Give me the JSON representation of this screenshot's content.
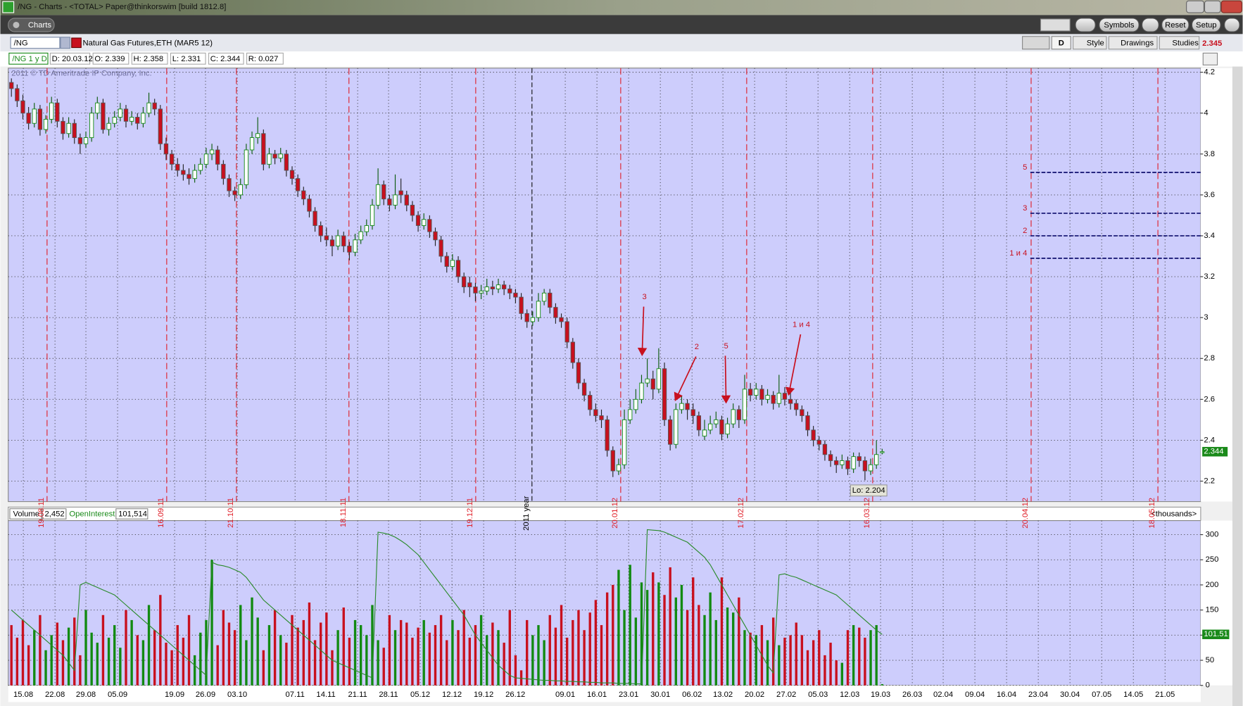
{
  "window": {
    "title": "/NG - Charts - <TOTAL> Paper@thinkorswim [build 1812.8]",
    "tab": "Charts",
    "buttons": [
      "Symbols",
      "Reset",
      "Setup"
    ]
  },
  "symbol_bar": {
    "symbol": "/NG",
    "description": "Natural Gas Futures,ETH (MAR5 12)",
    "aggregation": "D",
    "buttons": [
      "Style",
      "Drawings",
      "Studies"
    ],
    "last": "2.345"
  },
  "info_bar": {
    "label": "/NG 1 y D",
    "items": [
      "D: 20.03.12",
      "O: 2.339",
      "H: 2.358",
      "L: 2.331",
      "C: 2.344",
      "R: 0.027"
    ]
  },
  "x_axis": {
    "labels": [
      "15.08",
      "22.08",
      "29.08",
      "05.09",
      "19.09",
      "26.09",
      "03.10",
      "07.11",
      "14.11",
      "21.11",
      "28.11",
      "05.12",
      "12.12",
      "19.12",
      "26.12",
      "09.01",
      "16.01",
      "23.01",
      "30.01",
      "06.02",
      "13.02",
      "20.02",
      "27.02",
      "05.03",
      "12.03",
      "19.03",
      "26.03",
      "02.04",
      "09.04",
      "16.04",
      "23.04",
      "30.04",
      "07.05",
      "14.05",
      "21.05"
    ]
  },
  "chart_data": [
    {
      "type": "candlestick",
      "watermark": "2011 © TD Ameritrade IP Company, Inc.",
      "ylim": [
        2.1,
        4.22
      ],
      "yticks": [
        2.2,
        2.4,
        2.6,
        2.8,
        3,
        3.2,
        3.4,
        3.6,
        3.8,
        4,
        4.2
      ],
      "grid": true,
      "up_color": "#128a12",
      "down_color": "#c8101e",
      "current_value": 2.344,
      "low_label": "Lo: 2.204",
      "expiry_lines": [
        "19.08.11",
        "16.09.11",
        "21.10.11",
        "18.11.11",
        "19.12.11",
        "20.01.12",
        "17.02.12",
        "16.03.12",
        "20.04.12",
        "18.05.12"
      ],
      "year_line": "2011 year",
      "arrows": [
        "3",
        "2",
        "5",
        "1 и 4"
      ],
      "levels": [
        {
          "label": "5",
          "value": 3.71
        },
        {
          "label": "3",
          "value": 3.51
        },
        {
          "label": "2",
          "value": 3.4
        },
        {
          "label": "1 и 4",
          "value": 3.29
        }
      ],
      "ohlc": [
        [
          4.15,
          4.17,
          4.08,
          4.12
        ],
        [
          4.12,
          4.14,
          4.03,
          4.06
        ],
        [
          4.06,
          4.09,
          3.97,
          4.0
        ],
        [
          4.0,
          4.03,
          3.92,
          3.95
        ],
        [
          3.95,
          4.05,
          3.93,
          4.02
        ],
        [
          4.02,
          4.04,
          3.89,
          3.92
        ],
        [
          3.92,
          3.99,
          3.9,
          3.97
        ],
        [
          3.97,
          4.08,
          3.95,
          4.05
        ],
        [
          4.05,
          4.07,
          3.93,
          3.96
        ],
        [
          3.96,
          3.98,
          3.87,
          3.9
        ],
        [
          3.9,
          3.98,
          3.88,
          3.95
        ],
        [
          3.95,
          3.97,
          3.85,
          3.88
        ],
        [
          3.88,
          3.9,
          3.8,
          3.85
        ],
        [
          3.85,
          3.91,
          3.83,
          3.88
        ],
        [
          3.88,
          4.03,
          3.86,
          4.0
        ],
        [
          4.0,
          4.08,
          3.97,
          4.05
        ],
        [
          4.05,
          4.07,
          3.9,
          3.92
        ],
        [
          3.92,
          3.98,
          3.89,
          3.95
        ],
        [
          3.95,
          4.01,
          3.93,
          3.98
        ],
        [
          3.98,
          4.05,
          3.96,
          4.02
        ],
        [
          4.02,
          4.04,
          3.93,
          3.96
        ],
        [
          3.96,
          4.01,
          3.94,
          3.98
        ],
        [
          3.98,
          4.0,
          3.92,
          3.95
        ],
        [
          3.95,
          4.03,
          3.93,
          4.0
        ],
        [
          4.0,
          4.1,
          3.98,
          4.05
        ],
        [
          4.05,
          4.07,
          3.99,
          4.02
        ],
        [
          4.02,
          4.04,
          3.82,
          3.85
        ],
        [
          3.85,
          3.88,
          3.77,
          3.8
        ],
        [
          3.8,
          3.82,
          3.72,
          3.75
        ],
        [
          3.75,
          3.78,
          3.69,
          3.72
        ],
        [
          3.72,
          3.75,
          3.67,
          3.7
        ],
        [
          3.7,
          3.73,
          3.65,
          3.68
        ],
        [
          3.68,
          3.75,
          3.66,
          3.72
        ],
        [
          3.72,
          3.78,
          3.7,
          3.75
        ],
        [
          3.75,
          3.83,
          3.73,
          3.8
        ],
        [
          3.8,
          3.85,
          3.77,
          3.82
        ],
        [
          3.82,
          3.84,
          3.72,
          3.75
        ],
        [
          3.75,
          3.77,
          3.65,
          3.68
        ],
        [
          3.68,
          3.7,
          3.59,
          3.62
        ],
        [
          3.62,
          3.64,
          3.57,
          3.6
        ],
        [
          3.6,
          3.68,
          3.58,
          3.65
        ],
        [
          3.65,
          3.85,
          3.63,
          3.82
        ],
        [
          3.82,
          3.91,
          3.8,
          3.88
        ],
        [
          3.88,
          3.98,
          3.85,
          3.9
        ],
        [
          3.9,
          3.92,
          3.72,
          3.75
        ],
        [
          3.75,
          3.83,
          3.73,
          3.8
        ],
        [
          3.8,
          3.82,
          3.75,
          3.78
        ],
        [
          3.78,
          3.83,
          3.76,
          3.8
        ],
        [
          3.8,
          3.82,
          3.69,
          3.72
        ],
        [
          3.72,
          3.74,
          3.65,
          3.68
        ],
        [
          3.68,
          3.7,
          3.59,
          3.62
        ],
        [
          3.62,
          3.64,
          3.55,
          3.58
        ],
        [
          3.58,
          3.6,
          3.49,
          3.52
        ],
        [
          3.52,
          3.54,
          3.42,
          3.45
        ],
        [
          3.45,
          3.47,
          3.37,
          3.4
        ],
        [
          3.4,
          3.44,
          3.35,
          3.38
        ],
        [
          3.38,
          3.4,
          3.3,
          3.35
        ],
        [
          3.35,
          3.43,
          3.33,
          3.4
        ],
        [
          3.4,
          3.42,
          3.32,
          3.35
        ],
        [
          3.35,
          3.37,
          3.28,
          3.32
        ],
        [
          3.32,
          3.41,
          3.3,
          3.38
        ],
        [
          3.38,
          3.45,
          3.36,
          3.42
        ],
        [
          3.42,
          3.48,
          3.4,
          3.45
        ],
        [
          3.45,
          3.58,
          3.43,
          3.55
        ],
        [
          3.55,
          3.73,
          3.53,
          3.65
        ],
        [
          3.65,
          3.67,
          3.55,
          3.58
        ],
        [
          3.58,
          3.6,
          3.52,
          3.55
        ],
        [
          3.55,
          3.7,
          3.53,
          3.6
        ],
        [
          3.62,
          3.68,
          3.56,
          3.6
        ],
        [
          3.6,
          3.62,
          3.52,
          3.55
        ],
        [
          3.55,
          3.57,
          3.47,
          3.5
        ],
        [
          3.5,
          3.52,
          3.42,
          3.45
        ],
        [
          3.45,
          3.51,
          3.43,
          3.48
        ],
        [
          3.48,
          3.5,
          3.39,
          3.42
        ],
        [
          3.42,
          3.44,
          3.35,
          3.38
        ],
        [
          3.38,
          3.4,
          3.27,
          3.3
        ],
        [
          3.3,
          3.32,
          3.22,
          3.25
        ],
        [
          3.25,
          3.31,
          3.23,
          3.28
        ],
        [
          3.28,
          3.3,
          3.17,
          3.2
        ],
        [
          3.2,
          3.22,
          3.12,
          3.15
        ],
        [
          3.17,
          3.2,
          3.1,
          3.15
        ],
        [
          3.15,
          3.17,
          3.08,
          3.12
        ],
        [
          3.12,
          3.16,
          3.09,
          3.13
        ],
        [
          3.13,
          3.19,
          3.11,
          3.15
        ],
        [
          3.15,
          3.18,
          3.11,
          3.14
        ],
        [
          3.14,
          3.19,
          3.12,
          3.16
        ],
        [
          3.16,
          3.18,
          3.11,
          3.14
        ],
        [
          3.14,
          3.16,
          3.09,
          3.12
        ],
        [
          3.12,
          3.14,
          3.07,
          3.1
        ],
        [
          3.1,
          3.12,
          2.99,
          3.02
        ],
        [
          3.02,
          3.04,
          2.95,
          2.98
        ],
        [
          2.98,
          3.03,
          2.96,
          3.0
        ],
        [
          3.0,
          3.12,
          2.98,
          3.08
        ],
        [
          3.08,
          3.14,
          3.06,
          3.12
        ],
        [
          3.12,
          3.14,
          3.02,
          3.05
        ],
        [
          3.05,
          3.07,
          2.97,
          3.0
        ],
        [
          3.0,
          3.02,
          2.95,
          2.98
        ],
        [
          2.98,
          3.0,
          2.85,
          2.88
        ],
        [
          2.88,
          2.9,
          2.75,
          2.78
        ],
        [
          2.78,
          2.8,
          2.65,
          2.68
        ],
        [
          2.68,
          2.7,
          2.59,
          2.62
        ],
        [
          2.62,
          2.64,
          2.52,
          2.55
        ],
        [
          2.55,
          2.58,
          2.49,
          2.52
        ],
        [
          2.52,
          2.55,
          2.46,
          2.5
        ],
        [
          2.5,
          2.52,
          2.32,
          2.35
        ],
        [
          2.35,
          2.37,
          2.22,
          2.25
        ],
        [
          2.25,
          2.31,
          2.23,
          2.28
        ],
        [
          2.28,
          2.55,
          2.26,
          2.5
        ],
        [
          2.5,
          2.6,
          2.48,
          2.55
        ],
        [
          2.55,
          2.65,
          2.53,
          2.6
        ],
        [
          2.6,
          2.72,
          2.58,
          2.68
        ],
        [
          2.68,
          2.8,
          2.66,
          2.7
        ],
        [
          2.7,
          2.74,
          2.6,
          2.65
        ],
        [
          2.65,
          2.85,
          2.63,
          2.75
        ],
        [
          2.75,
          2.78,
          2.47,
          2.5
        ],
        [
          2.5,
          2.52,
          2.35,
          2.38
        ],
        [
          2.38,
          2.58,
          2.36,
          2.55
        ],
        [
          2.55,
          2.62,
          2.53,
          2.58
        ],
        [
          2.58,
          2.6,
          2.5,
          2.55
        ],
        [
          2.55,
          2.58,
          2.48,
          2.52
        ],
        [
          2.52,
          2.54,
          2.42,
          2.45
        ],
        [
          2.42,
          2.5,
          2.4,
          2.45
        ],
        [
          2.45,
          2.52,
          2.43,
          2.48
        ],
        [
          2.48,
          2.54,
          2.46,
          2.5
        ],
        [
          2.5,
          2.52,
          2.4,
          2.43
        ],
        [
          2.43,
          2.51,
          2.41,
          2.48
        ],
        [
          2.48,
          2.58,
          2.46,
          2.55
        ],
        [
          2.55,
          2.57,
          2.46,
          2.5
        ],
        [
          2.5,
          2.72,
          2.48,
          2.65
        ],
        [
          2.65,
          2.68,
          2.59,
          2.62
        ],
        [
          2.62,
          2.68,
          2.6,
          2.65
        ],
        [
          2.65,
          2.67,
          2.57,
          2.6
        ],
        [
          2.6,
          2.65,
          2.58,
          2.62
        ],
        [
          2.62,
          2.64,
          2.55,
          2.58
        ],
        [
          2.58,
          2.72,
          2.56,
          2.63
        ],
        [
          2.63,
          2.66,
          2.57,
          2.6
        ],
        [
          2.6,
          2.64,
          2.55,
          2.58
        ],
        [
          2.58,
          2.6,
          2.52,
          2.55
        ],
        [
          2.55,
          2.57,
          2.49,
          2.52
        ],
        [
          2.52,
          2.54,
          2.42,
          2.45
        ],
        [
          2.45,
          2.47,
          2.37,
          2.4
        ],
        [
          2.4,
          2.42,
          2.35,
          2.38
        ],
        [
          2.38,
          2.4,
          2.3,
          2.33
        ],
        [
          2.33,
          2.35,
          2.27,
          2.3
        ],
        [
          2.3,
          2.32,
          2.24,
          2.28
        ],
        [
          2.28,
          2.33,
          2.26,
          2.3
        ],
        [
          2.3,
          2.32,
          2.23,
          2.26
        ],
        [
          2.26,
          2.34,
          2.24,
          2.32
        ],
        [
          2.32,
          2.34,
          2.27,
          2.3
        ],
        [
          2.3,
          2.32,
          2.204,
          2.25
        ],
        [
          2.25,
          2.31,
          2.23,
          2.28
        ],
        [
          2.28,
          2.4,
          2.26,
          2.33
        ],
        [
          2.339,
          2.358,
          2.331,
          2.344
        ]
      ]
    },
    {
      "type": "volume",
      "title": "Volume",
      "value_label": "2,452",
      "unit": "<thousands>",
      "ylim": [
        0,
        328
      ],
      "yticks": [
        0,
        50,
        100,
        150,
        200,
        250,
        300
      ],
      "grid": true,
      "values": [
        120,
        95,
        130,
        80,
        110,
        140,
        70,
        100,
        125,
        90,
        115,
        135,
        60,
        150,
        105,
        85,
        140,
        95,
        120,
        75,
        150,
        130,
        100,
        90,
        160,
        110,
        180,
        85,
        70,
        120,
        95,
        140,
        60,
        105,
        130,
        250,
        80,
        150,
        125,
        110,
        160,
        90,
        175,
        135,
        70,
        120,
        150,
        100,
        85,
        140,
        115,
        130,
        165,
        90,
        125,
        145,
        70,
        110,
        155,
        95,
        130,
        120,
        100,
        160,
        90,
        75,
        140,
        110,
        130,
        125,
        95,
        115,
        130,
        105,
        120,
        140,
        90,
        130,
        110,
        150,
        95,
        120,
        140,
        100,
        125,
        110,
        85,
        150,
        60,
        30,
        130,
        100,
        120,
        90,
        140,
        115,
        160,
        95,
        130,
        150,
        110,
        145,
        170,
        120,
        185,
        200,
        230,
        150,
        240,
        135,
        205,
        190,
        225,
        205,
        180,
        235,
        175,
        200,
        150,
        215,
        160,
        140,
        185,
        130,
        215,
        155,
        145,
        175,
        110,
        105,
        100,
        120,
        90,
        135,
        80,
        95,
        100,
        125,
        100,
        70,
        90,
        110,
        60,
        85,
        50,
        45,
        110,
        120,
        115,
        95,
        110,
        120,
        2.452
      ],
      "line": {
        "name": "OpenInterest",
        "color": "#2a8a2a",
        "value_label": "101,514",
        "last_label": "101.51",
        "values": [
          150,
          140,
          130,
          120,
          110,
          100,
          90,
          80,
          70,
          60,
          45,
          30,
          200,
          205,
          200,
          195,
          190,
          185,
          180,
          170,
          160,
          150,
          140,
          130,
          120,
          110,
          100,
          90,
          80,
          70,
          60,
          50,
          40,
          30,
          20,
          245,
          240,
          238,
          235,
          230,
          225,
          215,
          200,
          185,
          170,
          160,
          150,
          140,
          130,
          120,
          110,
          100,
          90,
          80,
          70,
          60,
          50,
          45,
          40,
          35,
          30,
          25,
          20,
          15,
          305,
          303,
          300,
          295,
          288,
          280,
          270,
          260,
          245,
          230,
          215,
          200,
          185,
          170,
          155,
          140,
          120,
          100,
          85,
          70,
          55,
          40,
          30,
          20,
          15,
          14,
          13,
          12,
          11,
          10,
          10,
          9,
          9,
          8,
          8,
          7,
          7,
          6,
          6,
          5,
          5,
          5,
          4,
          4,
          4,
          3,
          3,
          310,
          309,
          308,
          305,
          300,
          295,
          290,
          285,
          275,
          265,
          255,
          240,
          220,
          200,
          180,
          160,
          140,
          120,
          100,
          80,
          60,
          40,
          25,
          220,
          222,
          218,
          215,
          210,
          205,
          200,
          195,
          190,
          185,
          180,
          170,
          160,
          150,
          140,
          130,
          120,
          110,
          101.514
        ]
      }
    }
  ]
}
